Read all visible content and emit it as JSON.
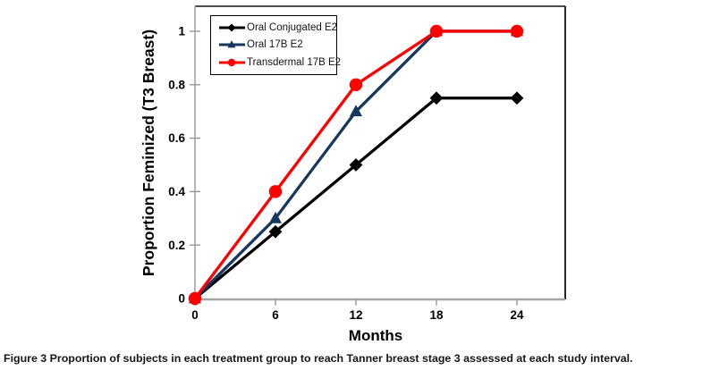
{
  "figure": {
    "caption_label": "Figure 3",
    "caption_text": "Proportion of subjects in each treatment group to reach Tanner breast stage 3 assessed at each study interval."
  },
  "chart_data": {
    "type": "line",
    "title": "",
    "xlabel": "Months",
    "ylabel": "Proportion Feminized (T3 Breast)",
    "x": [
      0,
      6,
      12,
      18,
      24
    ],
    "xticks": [
      0,
      6,
      12,
      18,
      24
    ],
    "yticks": [
      0,
      0.2,
      0.4,
      0.6,
      0.8,
      1
    ],
    "xlim": [
      0,
      27.6
    ],
    "ylim": [
      0,
      1.1
    ],
    "grid": false,
    "legend_position": "top-left-inside",
    "series": [
      {
        "name": "Oral Conjugated E2",
        "color": "#000000",
        "marker": "diamond",
        "values": [
          0,
          0.25,
          0.5,
          0.75,
          0.75
        ]
      },
      {
        "name": "Oral 17B E2",
        "color": "#17375E",
        "marker": "triangle",
        "values": [
          0,
          0.3,
          0.7,
          1,
          1
        ]
      },
      {
        "name": "Transdermal 17B E2",
        "color": "#FF0000",
        "marker": "circle",
        "values": [
          0,
          0.4,
          0.8,
          1,
          1
        ]
      }
    ],
    "colors": {
      "axis_line": "#A6A6A6",
      "plot_border": "#4D4D4D",
      "tick": "#999999",
      "text": "#000000"
    }
  }
}
